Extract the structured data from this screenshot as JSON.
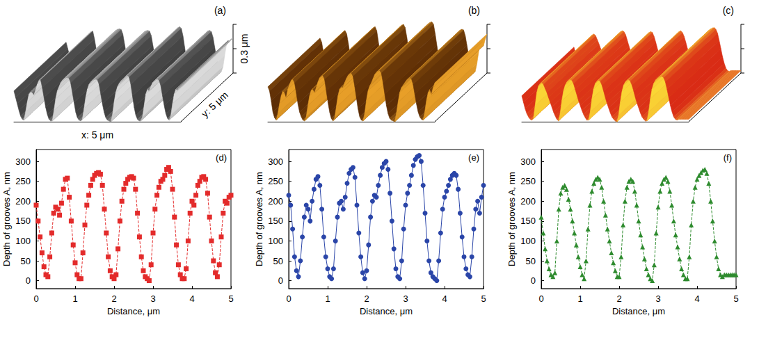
{
  "chart_data": [
    {
      "type": "surface3d",
      "panel": "(a)",
      "x_label": "x: 5 μm",
      "y_label": "y: 5 μm",
      "z_label": "0.3 μm",
      "colors": [
        "#2a2a2a",
        "#f4f4f4"
      ],
      "xlim": [
        0,
        5
      ],
      "zlim": [
        0,
        300
      ],
      "zticks": [
        0,
        150,
        300
      ],
      "tick_labels": false
    },
    {
      "type": "surface3d",
      "panel": "(b)",
      "colors": [
        "#4a1e00",
        "#ffb22e"
      ],
      "xlim": [
        0,
        5
      ],
      "zlim": [
        0,
        300
      ],
      "zticks": [
        0,
        150,
        300
      ],
      "tick_labels": false
    },
    {
      "type": "surface3d",
      "panel": "(c)",
      "colors": [
        "#d41010",
        "#fff03a"
      ],
      "xlim": [
        0,
        5
      ],
      "zlim": [
        0,
        300
      ],
      "zticks": [
        0,
        150,
        300
      ],
      "tick_labels": false
    },
    {
      "type": "line",
      "panel": "(d)",
      "x_label": "Distance, μm",
      "y_label": "Depth of grooves A, nm",
      "color": "#e32b2b",
      "marker": "square",
      "line_style": "dashed",
      "x": [
        0,
        0.05,
        0.1,
        0.15,
        0.2,
        0.25,
        0.3,
        0.35,
        0.4,
        0.45,
        0.5,
        0.55,
        0.6,
        0.65,
        0.7,
        0.75,
        0.8,
        0.85,
        0.9,
        0.95,
        1,
        1.05,
        1.1,
        1.15,
        1.2,
        1.25,
        1.3,
        1.35,
        1.4,
        1.45,
        1.5,
        1.55,
        1.6,
        1.65,
        1.7,
        1.75,
        1.8,
        1.85,
        1.9,
        1.95,
        2,
        2.05,
        2.1,
        2.15,
        2.2,
        2.25,
        2.3,
        2.35,
        2.4,
        2.45,
        2.5,
        2.55,
        2.6,
        2.65,
        2.7,
        2.75,
        2.8,
        2.85,
        2.9,
        2.95,
        3,
        3.05,
        3.1,
        3.15,
        3.2,
        3.25,
        3.3,
        3.35,
        3.4,
        3.45,
        3.5,
        3.55,
        3.6,
        3.65,
        3.7,
        3.75,
        3.8,
        3.85,
        3.9,
        3.95,
        4,
        4.05,
        4.1,
        4.15,
        4.2,
        4.25,
        4.3,
        4.35,
        4.4,
        4.45,
        4.5,
        4.55,
        4.6,
        4.65,
        4.7,
        4.75,
        4.8,
        4.85,
        4.9,
        4.95,
        5
      ],
      "values": [
        190,
        150,
        110,
        70,
        35,
        15,
        10,
        60,
        120,
        170,
        185,
        180,
        165,
        195,
        230,
        255,
        258,
        210,
        150,
        90,
        45,
        15,
        5,
        5,
        70,
        140,
        190,
        215,
        240,
        255,
        265,
        270,
        272,
        268,
        240,
        180,
        120,
        60,
        25,
        10,
        5,
        15,
        80,
        150,
        200,
        230,
        245,
        255,
        260,
        262,
        258,
        230,
        170,
        110,
        60,
        25,
        10,
        5,
        0,
        40,
        120,
        180,
        215,
        235,
        250,
        255,
        265,
        280,
        285,
        275,
        230,
        160,
        90,
        40,
        15,
        5,
        5,
        30,
        100,
        170,
        200,
        190,
        215,
        240,
        250,
        260,
        262,
        255,
        220,
        160,
        100,
        50,
        20,
        10,
        40,
        110,
        170,
        200,
        195,
        210,
        215
      ],
      "xlim": [
        0,
        5
      ],
      "xticks": [
        0,
        1,
        2,
        3,
        4,
        5
      ],
      "ylim": [
        -20,
        330
      ],
      "yticks": [
        0,
        50,
        100,
        150,
        200,
        250,
        300
      ]
    },
    {
      "type": "line",
      "panel": "(e)",
      "x_label": "Distance, μm",
      "y_label": "Depth of grooves A, nm",
      "color": "#2a45a8",
      "marker": "circle",
      "line_style": "solid",
      "x": [
        0,
        0.05,
        0.1,
        0.15,
        0.2,
        0.25,
        0.3,
        0.35,
        0.4,
        0.45,
        0.5,
        0.55,
        0.6,
        0.65,
        0.7,
        0.75,
        0.8,
        0.85,
        0.9,
        0.95,
        1,
        1.05,
        1.1,
        1.15,
        1.2,
        1.25,
        1.3,
        1.35,
        1.4,
        1.45,
        1.5,
        1.55,
        1.6,
        1.65,
        1.7,
        1.75,
        1.8,
        1.85,
        1.9,
        1.95,
        2,
        2.05,
        2.1,
        2.15,
        2.2,
        2.25,
        2.3,
        2.35,
        2.4,
        2.45,
        2.5,
        2.55,
        2.6,
        2.65,
        2.7,
        2.75,
        2.8,
        2.85,
        2.9,
        2.95,
        3,
        3.05,
        3.1,
        3.15,
        3.2,
        3.25,
        3.3,
        3.35,
        3.4,
        3.45,
        3.5,
        3.55,
        3.6,
        3.65,
        3.7,
        3.75,
        3.8,
        3.85,
        3.9,
        3.95,
        4,
        4.05,
        4.1,
        4.15,
        4.2,
        4.25,
        4.3,
        4.35,
        4.4,
        4.45,
        4.5,
        4.55,
        4.6,
        4.65,
        4.7,
        4.75,
        4.8,
        4.85,
        4.9,
        4.95,
        5
      ],
      "values": [
        215,
        190,
        130,
        60,
        25,
        10,
        50,
        110,
        160,
        190,
        180,
        150,
        200,
        230,
        255,
        262,
        240,
        180,
        110,
        60,
        30,
        10,
        5,
        30,
        100,
        160,
        195,
        200,
        180,
        210,
        245,
        270,
        280,
        285,
        260,
        190,
        120,
        60,
        20,
        5,
        25,
        90,
        160,
        200,
        215,
        210,
        240,
        265,
        285,
        295,
        300,
        280,
        220,
        150,
        80,
        30,
        10,
        5,
        50,
        130,
        190,
        220,
        240,
        265,
        290,
        305,
        312,
        315,
        300,
        240,
        170,
        100,
        50,
        20,
        10,
        5,
        0,
        50,
        120,
        180,
        210,
        225,
        240,
        255,
        265,
        270,
        265,
        230,
        170,
        110,
        60,
        30,
        15,
        10,
        60,
        130,
        180,
        200,
        170,
        210,
        240
      ],
      "xlim": [
        0,
        5
      ],
      "xticks": [
        0,
        1,
        2,
        3,
        4,
        5
      ],
      "ylim": [
        -20,
        330
      ],
      "yticks": [
        0,
        50,
        100,
        150,
        200,
        250,
        300
      ]
    },
    {
      "type": "line",
      "panel": "(f)",
      "x_label": "Distance, μm",
      "y_label": "Depth of grooves A, nm",
      "color": "#2e8b2e",
      "marker": "triangle",
      "line_style": "dashed",
      "x": [
        0,
        0.05,
        0.1,
        0.15,
        0.2,
        0.25,
        0.3,
        0.35,
        0.4,
        0.45,
        0.5,
        0.55,
        0.6,
        0.65,
        0.7,
        0.75,
        0.8,
        0.85,
        0.9,
        0.95,
        1,
        1.05,
        1.1,
        1.15,
        1.2,
        1.25,
        1.3,
        1.35,
        1.4,
        1.45,
        1.5,
        1.55,
        1.6,
        1.65,
        1.7,
        1.75,
        1.8,
        1.85,
        1.9,
        1.95,
        2,
        2.05,
        2.1,
        2.15,
        2.2,
        2.25,
        2.3,
        2.35,
        2.4,
        2.45,
        2.5,
        2.55,
        2.6,
        2.65,
        2.7,
        2.75,
        2.8,
        2.85,
        2.9,
        2.95,
        3,
        3.05,
        3.1,
        3.15,
        3.2,
        3.25,
        3.3,
        3.35,
        3.4,
        3.45,
        3.5,
        3.55,
        3.6,
        3.65,
        3.7,
        3.75,
        3.8,
        3.85,
        3.9,
        3.95,
        4,
        4.05,
        4.1,
        4.15,
        4.2,
        4.25,
        4.3,
        4.35,
        4.4,
        4.45,
        4.5,
        4.55,
        4.6,
        4.65,
        4.7,
        4.75,
        4.8,
        4.85,
        4.9,
        4.95,
        5
      ],
      "values": [
        160,
        120,
        80,
        50,
        30,
        15,
        10,
        20,
        100,
        180,
        220,
        235,
        240,
        230,
        205,
        180,
        150,
        120,
        90,
        60,
        35,
        15,
        5,
        50,
        130,
        190,
        225,
        245,
        255,
        260,
        255,
        235,
        200,
        165,
        130,
        100,
        70,
        45,
        25,
        10,
        10,
        60,
        140,
        200,
        235,
        250,
        255,
        250,
        225,
        190,
        150,
        115,
        85,
        55,
        30,
        15,
        5,
        0,
        40,
        120,
        185,
        225,
        245,
        255,
        260,
        250,
        225,
        190,
        150,
        115,
        85,
        55,
        30,
        15,
        5,
        5,
        60,
        140,
        200,
        235,
        255,
        265,
        272,
        278,
        280,
        270,
        245,
        200,
        150,
        100,
        60,
        30,
        15,
        10,
        15,
        15,
        15,
        15,
        15,
        15,
        15
      ],
      "xlim": [
        0,
        5
      ],
      "xticks": [
        0,
        1,
        2,
        3,
        4,
        5
      ],
      "ylim": [
        -20,
        330
      ],
      "yticks": [
        0,
        50,
        100,
        150,
        200,
        250,
        300
      ]
    }
  ]
}
